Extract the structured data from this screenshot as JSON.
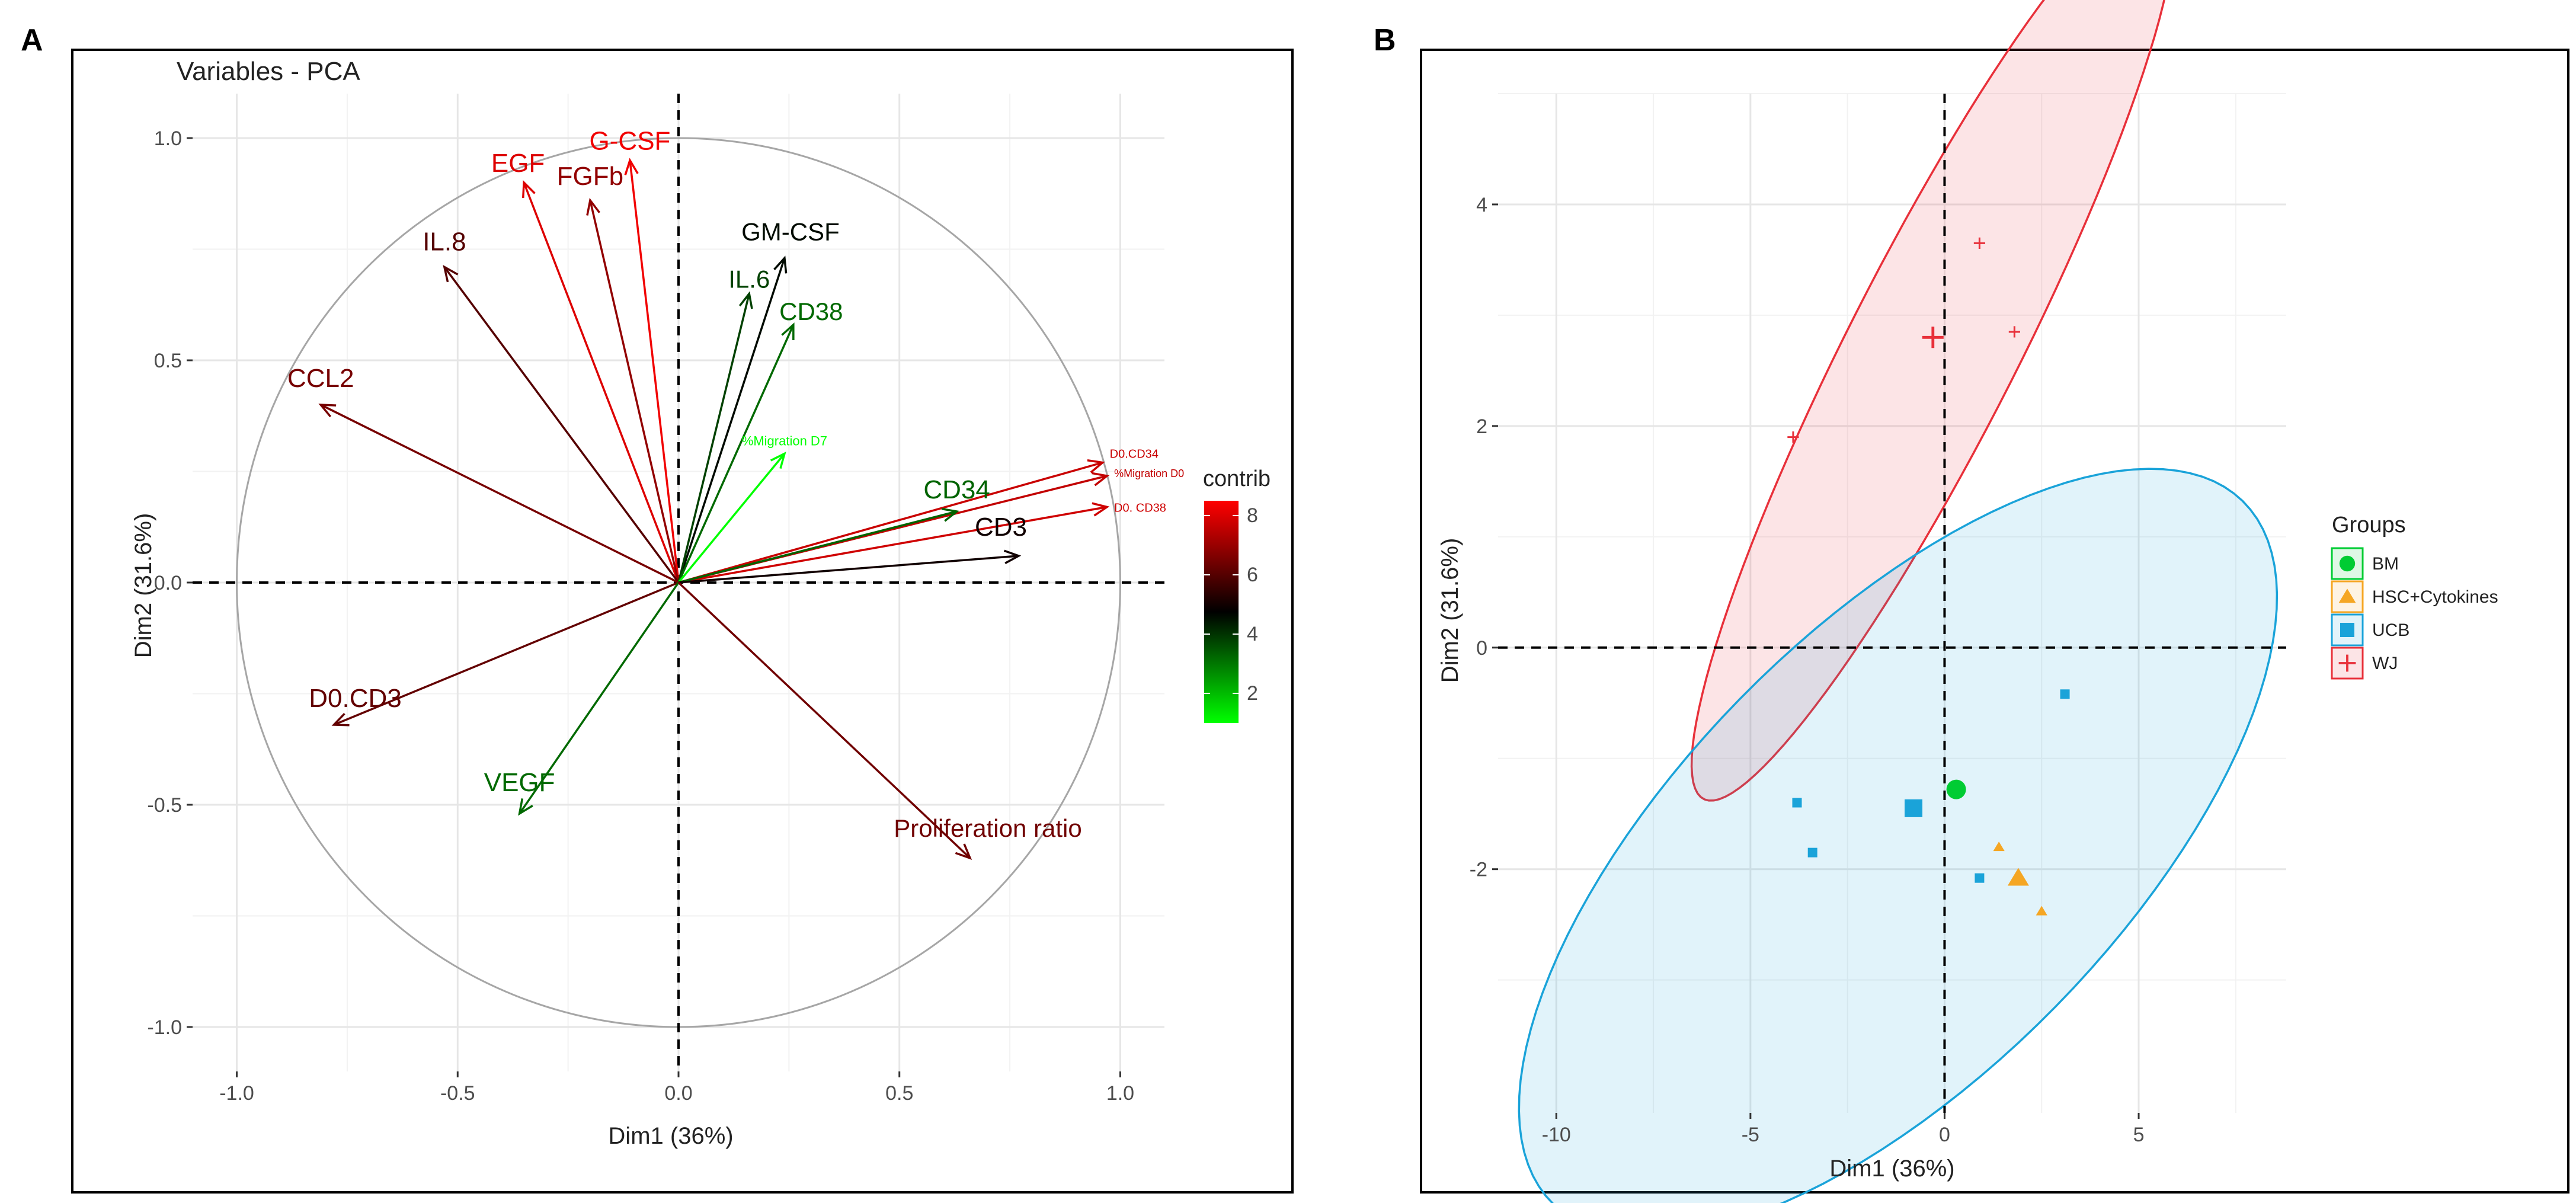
{
  "panels": {
    "a_letter": "A",
    "b_letter": "B"
  },
  "chart_data": [
    {
      "type": "pca-variable-correlation-circle",
      "title": "Variables - PCA",
      "xlabel": "Dim1 (36%)",
      "ylabel": "Dim2 (31.6%)",
      "xlim": [
        -1.1,
        1.1
      ],
      "ylim": [
        -1.1,
        1.1
      ],
      "xticks": [
        "-1.0",
        "-0.5",
        "0.0",
        "0.5",
        "1.0"
      ],
      "yticks": [
        "-1.0",
        "-0.5",
        "0.0",
        "0.5",
        "1.0"
      ],
      "grid": true,
      "legend_title": "contrib",
      "legend_ticks": [
        "2",
        "4",
        "6",
        "8"
      ],
      "contrib_range": [
        1,
        8.5
      ],
      "color_stops": [
        "#00ff00",
        "#000000",
        "#ff0000"
      ],
      "variables": [
        {
          "name": "G-CSF",
          "x": -0.11,
          "y": 0.95,
          "contrib": 8.3
        },
        {
          "name": "EGF",
          "x": -0.35,
          "y": 0.9,
          "contrib": 8.0
        },
        {
          "name": "FGFb",
          "x": -0.2,
          "y": 0.86,
          "contrib": 6.9
        },
        {
          "name": "IL.8",
          "x": -0.53,
          "y": 0.71,
          "contrib": 6.0
        },
        {
          "name": "GM-CSF",
          "x": 0.24,
          "y": 0.73,
          "contrib": 4.6
        },
        {
          "name": "IL.6",
          "x": 0.16,
          "y": 0.65,
          "contrib": 3.8
        },
        {
          "name": "CD38",
          "x": 0.26,
          "y": 0.58,
          "contrib": 3.2
        },
        {
          "name": "CCL2",
          "x": -0.81,
          "y": 0.4,
          "contrib": 6.5
        },
        {
          "name": "%Migration D7",
          "x": 0.24,
          "y": 0.29,
          "contrib": 1.0
        },
        {
          "name": "D0.CD34",
          "x": 0.96,
          "y": 0.27,
          "contrib": 7.7
        },
        {
          "name": "%Migration D0",
          "x": 0.97,
          "y": 0.24,
          "contrib": 7.6
        },
        {
          "name": "D0. CD38",
          "x": 0.97,
          "y": 0.17,
          "contrib": 7.8
        },
        {
          "name": "CD34",
          "x": 0.63,
          "y": 0.16,
          "contrib": 3.3
        },
        {
          "name": "CD3",
          "x": 0.77,
          "y": 0.06,
          "contrib": 5.0
        },
        {
          "name": "D0.CD3",
          "x": -0.78,
          "y": -0.32,
          "contrib": 6.2
        },
        {
          "name": "VEGF",
          "x": -0.36,
          "y": -0.52,
          "contrib": 3.2
        },
        {
          "name": "Proliferation ratio",
          "x": 0.66,
          "y": -0.62,
          "contrib": 6.4
        }
      ]
    },
    {
      "type": "scatter",
      "title": "",
      "xlabel": "Dim1 (36%)",
      "ylabel": "Dim2 (31.6%)",
      "xlim": [
        -11.5,
        8.8
      ],
      "ylim": [
        -4.2,
        5.0
      ],
      "xticks": [
        "-10",
        "-5",
        "0",
        "5"
      ],
      "yticks": [
        "-2",
        "0",
        "2",
        "4"
      ],
      "grid": true,
      "legend_title": "Groups",
      "legend_position": "right",
      "groups": [
        {
          "name": "BM",
          "color": "#00cc33",
          "shape": "circle",
          "points": [],
          "centroid": [
            0.3,
            -1.28
          ]
        },
        {
          "name": "HSC+Cytokines",
          "color": "#f5a623",
          "shape": "triangle",
          "points": [
            [
              1.4,
              -1.8
            ],
            [
              2.5,
              -2.38
            ]
          ],
          "centroid": [
            1.9,
            -2.08
          ]
        },
        {
          "name": "UCB",
          "color": "#1aa3d9",
          "shape": "square",
          "points": [
            [
              -3.8,
              -1.4
            ],
            [
              -3.4,
              -1.85
            ],
            [
              0.9,
              -2.08
            ],
            [
              3.1,
              -0.42
            ]
          ],
          "centroid": [
            -0.8,
            -1.45
          ]
        },
        {
          "name": "WJ",
          "color": "#e8303a",
          "shape": "plus",
          "points": [
            [
              0.9,
              3.65
            ],
            [
              1.8,
              2.85
            ],
            [
              -3.9,
              1.9
            ]
          ],
          "centroid": [
            -0.3,
            2.8
          ]
        }
      ],
      "ellipses": [
        {
          "group": "WJ",
          "center": [
            -0.3,
            2.7
          ],
          "semi_major": 7.31,
          "semi_minor": 1.36,
          "angle_deg": 32.4
        },
        {
          "group": "UCB",
          "center": [
            -1.2,
            -1.85
          ],
          "semi_major": 10.05,
          "semi_minor": 2.51,
          "angle_deg": 14.2
        }
      ]
    }
  ]
}
